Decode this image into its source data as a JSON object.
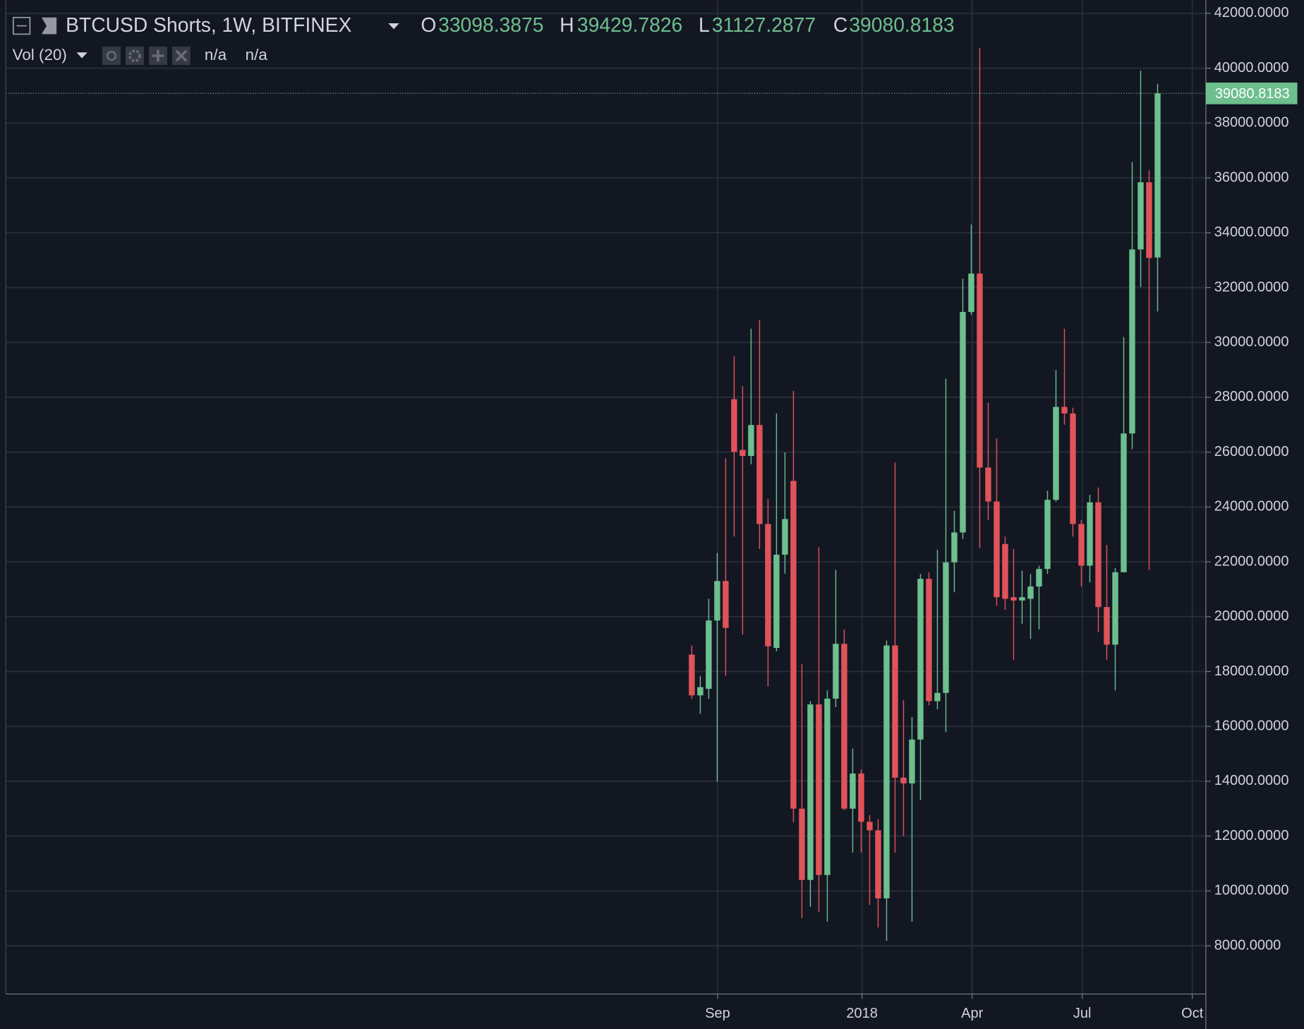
{
  "chart_data": {
    "type": "candlestick",
    "title": "BTCUSD Shorts, 1W, BITFINEX",
    "ohlc_labels": [
      "O",
      "H",
      "L",
      "C"
    ],
    "indicator": "Vol (20)",
    "indicator_values": [
      "n/a",
      "n/a"
    ],
    "up_color": "#6dbf8e",
    "down_color": "#e0535a",
    "open": [
      18616,
      17130,
      17370,
      19860,
      21300,
      27930,
      26080,
      25860,
      26990,
      23380,
      18860,
      22260,
      24950,
      13000,
      10400,
      16800,
      10580,
      17010,
      19010,
      13000,
      14280,
      12520,
      12210,
      9730,
      18950,
      14130,
      13920,
      15520,
      21380,
      16920,
      17220,
      21980,
      23070,
      31110,
      32510,
      25440,
      24200,
      22650,
      20710,
      20590,
      20650,
      21100,
      21740,
      24260,
      27650,
      27410,
      23380,
      21860,
      24170,
      20350,
      18980,
      21620,
      26680,
      33390,
      35840,
      33098.3875
    ],
    "high": [
      18950,
      17830,
      20650,
      22320,
      25770,
      29500,
      28410,
      30500,
      30810,
      24290,
      27410,
      25990,
      28230,
      18280,
      16920,
      22530,
      17310,
      21710,
      19530,
      15190,
      14430,
      12760,
      12610,
      19130,
      25620,
      16950,
      16340,
      21560,
      21620,
      22440,
      28680,
      23860,
      32320,
      34300,
      40730,
      27800,
      26500,
      22920,
      22470,
      21680,
      21560,
      21860,
      24590,
      28990,
      30500,
      27620,
      23530,
      24440,
      24710,
      22620,
      21770,
      30200,
      36570,
      39910,
      36270,
      39429.7826
    ],
    "low": [
      17000,
      16460,
      17000,
      13980,
      17850,
      22920,
      19340,
      25560,
      22470,
      17460,
      18740,
      21570,
      12500,
      9000,
      9420,
      9240,
      8880,
      16700,
      12940,
      11400,
      11400,
      9490,
      8670,
      8180,
      11400,
      12000,
      8880,
      13310,
      16770,
      16620,
      15790,
      20890,
      22830,
      31000,
      22500,
      23530,
      20400,
      20250,
      18430,
      19740,
      19190,
      19530,
      21560,
      24200,
      27000,
      22920,
      21100,
      21250,
      19430,
      18430,
      17310,
      21620,
      26110,
      32020,
      21710,
      31127.2877
    ],
    "close": [
      17130,
      17430,
      19860,
      21300,
      19590,
      26010,
      25860,
      26990,
      23380,
      18920,
      22260,
      23560,
      13000,
      10400,
      16800,
      10580,
      17010,
      19010,
      13000,
      14280,
      12520,
      12210,
      9730,
      18950,
      14130,
      13920,
      15520,
      21380,
      16920,
      17220,
      21980,
      23070,
      31110,
      32510,
      25440,
      24200,
      20710,
      20650,
      20590,
      20710,
      21100,
      21740,
      24260,
      27650,
      27410,
      23380,
      21860,
      24170,
      20350,
      18980,
      21620,
      26680,
      33390,
      35840,
      33080,
      39080.8183
    ],
    "xlim": [
      -81.0,
      60.7
    ],
    "xticks": [
      {
        "value": 3.05,
        "label": "Sep"
      },
      {
        "value": 20.1,
        "label": "2018"
      },
      {
        "value": 33.1,
        "label": "Apr"
      },
      {
        "value": 46.1,
        "label": "Jul"
      },
      {
        "value": 59.1,
        "label": "Oct"
      }
    ],
    "ylim": [
      6240,
      42485
    ],
    "yticks": [
      {
        "value": 8000,
        "label": "8000.0000"
      },
      {
        "value": 10000,
        "label": "10000.0000"
      },
      {
        "value": 12000,
        "label": "12000.0000"
      },
      {
        "value": 14000,
        "label": "14000.0000"
      },
      {
        "value": 16000,
        "label": "16000.0000"
      },
      {
        "value": 18000,
        "label": "18000.0000"
      },
      {
        "value": 20000,
        "label": "20000.0000"
      },
      {
        "value": 22000,
        "label": "22000.0000"
      },
      {
        "value": 24000,
        "label": "24000.0000"
      },
      {
        "value": 26000,
        "label": "26000.0000"
      },
      {
        "value": 28000,
        "label": "28000.0000"
      },
      {
        "value": 30000,
        "label": "30000.0000"
      },
      {
        "value": 32000,
        "label": "32000.0000"
      },
      {
        "value": 34000,
        "label": "34000.0000"
      },
      {
        "value": 36000,
        "label": "36000.0000"
      },
      {
        "value": 38000,
        "label": "38000.0000"
      },
      {
        "value": 40000,
        "label": "40000.0000"
      },
      {
        "value": 42000,
        "label": "42000.0000"
      }
    ],
    "grid": true
  }
}
